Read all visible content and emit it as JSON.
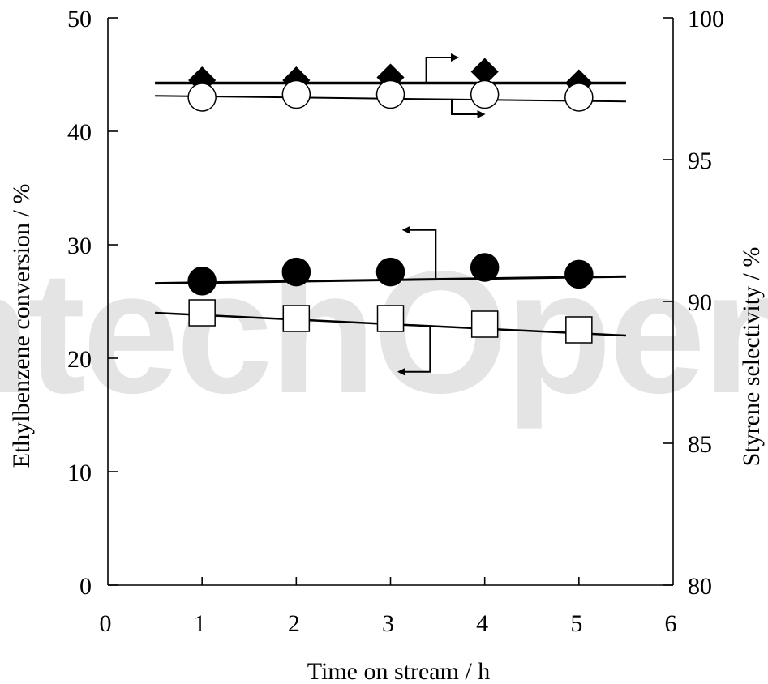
{
  "chart_data": {
    "type": "scatter",
    "x_axis": {
      "label": "Time on stream / h",
      "range": [
        0,
        6
      ],
      "ticks": [
        0,
        1,
        2,
        3,
        4,
        5,
        6
      ]
    },
    "y_left": {
      "label": "Ethylbenzene conversion / %",
      "range": [
        0,
        50
      ],
      "ticks": [
        0,
        10,
        20,
        30,
        40,
        50
      ]
    },
    "y_right": {
      "label": "Styrene selectivity / %",
      "range": [
        80,
        100
      ],
      "ticks": [
        80,
        85,
        90,
        95,
        100
      ]
    },
    "grid": false,
    "series": [
      {
        "axis": "right",
        "marker": "diamond",
        "fill": "#000000",
        "x": [
          1,
          2,
          3,
          4,
          5
        ],
        "y": [
          97.8,
          97.8,
          97.9,
          98.1,
          97.7
        ],
        "trend": {
          "x": [
            0.5,
            5.5
          ],
          "y": [
            97.7,
            97.7
          ],
          "width": 3.5
        }
      },
      {
        "axis": "right",
        "marker": "circle",
        "fill": "#ffffff",
        "x": [
          1,
          2,
          3,
          4,
          5
        ],
        "y": [
          97.2,
          97.3,
          97.3,
          97.3,
          97.2
        ],
        "trend": {
          "x": [
            0.5,
            5.5
          ],
          "y": [
            97.25,
            97.05
          ],
          "width": 2
        }
      },
      {
        "axis": "left",
        "marker": "circle",
        "fill": "#000000",
        "x": [
          1,
          2,
          3,
          4,
          5
        ],
        "y": [
          26.8,
          27.6,
          27.6,
          28.0,
          27.4
        ],
        "trend": {
          "x": [
            0.5,
            5.5
          ],
          "y": [
            26.6,
            27.2
          ],
          "width": 3
        }
      },
      {
        "axis": "left",
        "marker": "square",
        "fill": "#ffffff",
        "x": [
          1,
          2,
          3,
          4,
          5
        ],
        "y": [
          24.0,
          23.5,
          23.5,
          23.0,
          22.5
        ],
        "trend": {
          "x": [
            0.5,
            5.5
          ],
          "y": [
            24.0,
            22.0
          ],
          "width": 2.5
        }
      }
    ],
    "annotations": [
      {
        "kind": "axis-pointer",
        "points_to": "right",
        "path": [
          [
            3.38,
            97.7
          ],
          [
            3.38,
            98.6
          ],
          [
            3.65,
            98.6
          ]
        ]
      },
      {
        "kind": "axis-pointer",
        "points_to": "right",
        "path": [
          [
            3.65,
            97.15
          ],
          [
            3.65,
            96.6
          ],
          [
            3.93,
            96.6
          ]
        ]
      },
      {
        "kind": "axis-pointer",
        "points_to": "left",
        "path": [
          [
            3.48,
            27.0
          ],
          [
            3.48,
            31.3
          ],
          [
            3.2,
            31.3
          ]
        ]
      },
      {
        "kind": "axis-pointer",
        "points_to": "left",
        "path": [
          [
            3.42,
            22.8
          ],
          [
            3.42,
            18.8
          ],
          [
            3.15,
            18.8
          ]
        ]
      }
    ]
  }
}
